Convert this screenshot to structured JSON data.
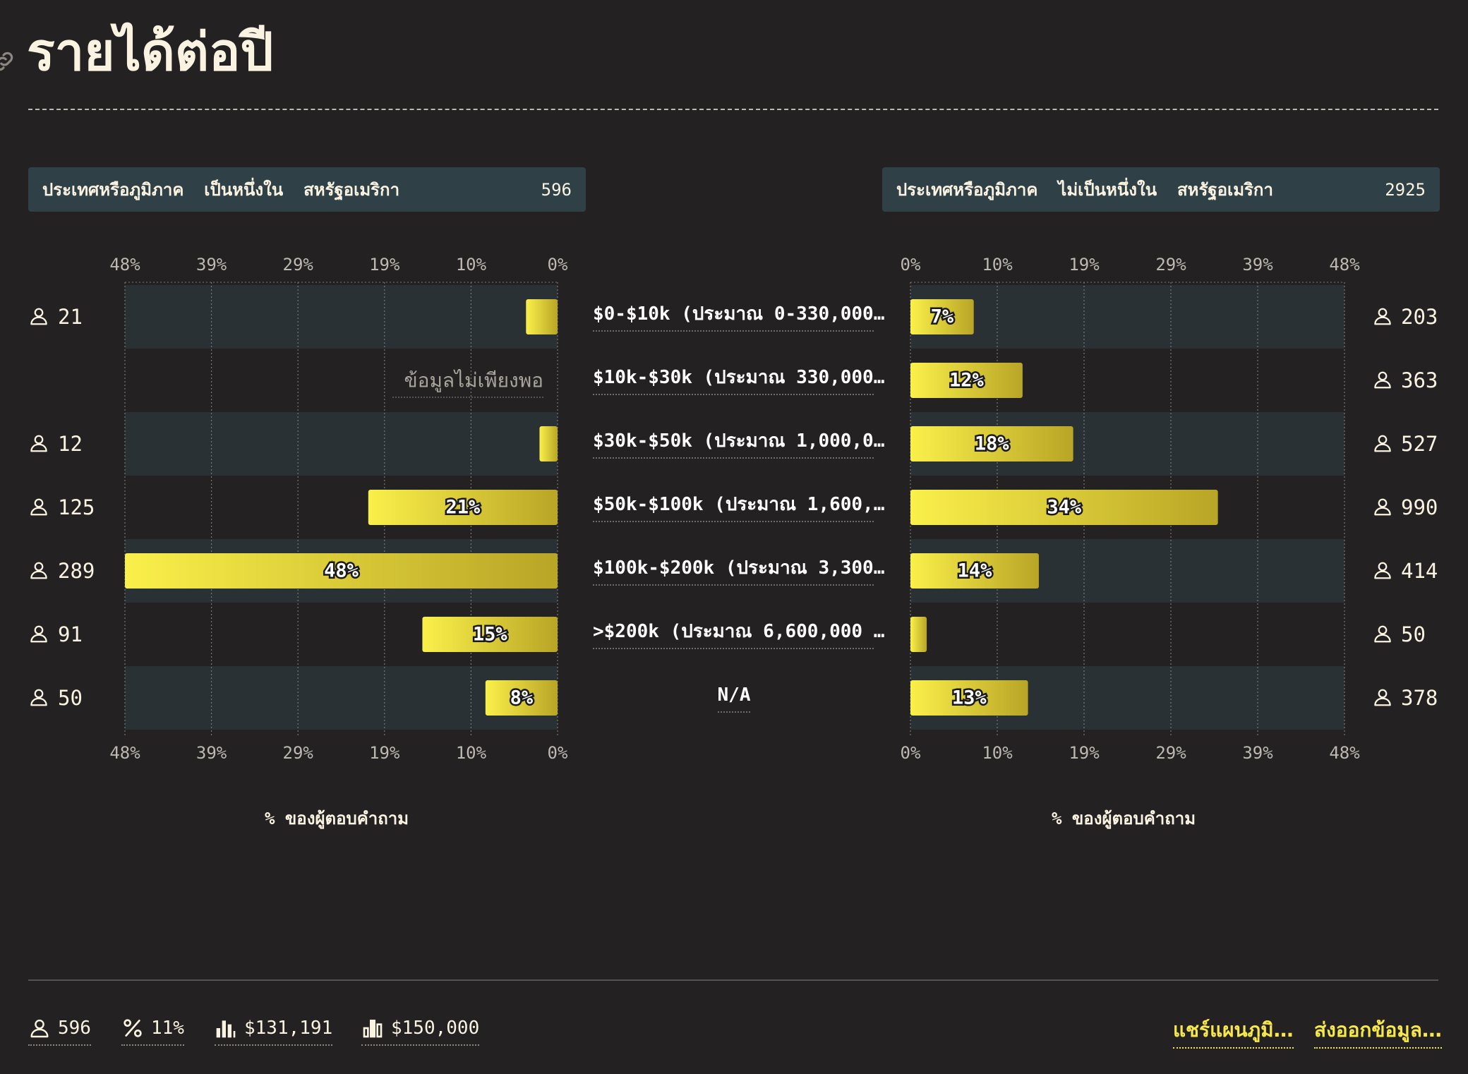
{
  "page": {
    "title": "รายได้ต่อปี"
  },
  "panels": {
    "left": {
      "label": "ประเทศหรือภูมิภาค  เป็นหนึ่งใน  สหรัฐอเมริกา",
      "count": "596"
    },
    "right": {
      "label": "ประเทศหรือภูมิภาค  ไม่เป็นหนึ่งใน  สหรัฐอเมริกา",
      "count": "2925"
    }
  },
  "footer": {
    "stats": {
      "respondents": "596",
      "percent": "11%",
      "mean": "$131,191",
      "median": "$150,000"
    },
    "share_label": "แชร์แผนภูมิ…",
    "export_label": "ส่งออกข้อมูล…"
  },
  "icons": {
    "person": "person-icon",
    "percent": "percent-icon",
    "mean": "bar-chart-mean-icon",
    "median": "bar-chart-median-icon",
    "link": "link-icon"
  },
  "colors": {
    "bar_start": "#faf04a",
    "bar_end": "#b9a526",
    "band": "#293134",
    "background": "#242122",
    "header": "#2f4146",
    "accent": "#f6e84a"
  },
  "chart_data": {
    "type": "bar",
    "orientation": "horizontal-butterfly",
    "xlabel": "% ของผู้ตอบคำถาม",
    "xlim": [
      0,
      48
    ],
    "ticks": [
      "0%",
      "10%",
      "19%",
      "29%",
      "39%",
      "48%"
    ],
    "tick_values": [
      0,
      9.6,
      19.2,
      28.8,
      38.4,
      48
    ],
    "grid": true,
    "categories": [
      "$0-$10k (ประมาณ 0-330,000…",
      "$10k-$30k (ประมาณ 330,000…",
      "$30k-$50k (ประมาณ 1,000,0…",
      "$50k-$100k (ประมาณ 1,600,…",
      "$100k-$200k (ประมาณ 3,300…",
      ">$200k (ประมาณ 6,600,000 …",
      "N/A"
    ],
    "insufficient_data_label": "ข้อมูลไม่เพียงพอ",
    "series": [
      {
        "side": "left",
        "values": [
          3.5,
          null,
          2,
          21,
          48,
          15,
          8
        ],
        "labels": [
          "",
          "",
          "",
          "21%",
          "48%",
          "15%",
          "8%"
        ],
        "counts": [
          "21",
          "",
          "12",
          "125",
          "289",
          "91",
          "50"
        ]
      },
      {
        "side": "right",
        "values": [
          7,
          12.4,
          18,
          34,
          14.2,
          1.8,
          13
        ],
        "labels": [
          "7%",
          "12%",
          "18%",
          "34%",
          "14%",
          "",
          "13%"
        ],
        "counts": [
          "203",
          "363",
          "527",
          "990",
          "414",
          "50",
          "378"
        ]
      }
    ]
  }
}
